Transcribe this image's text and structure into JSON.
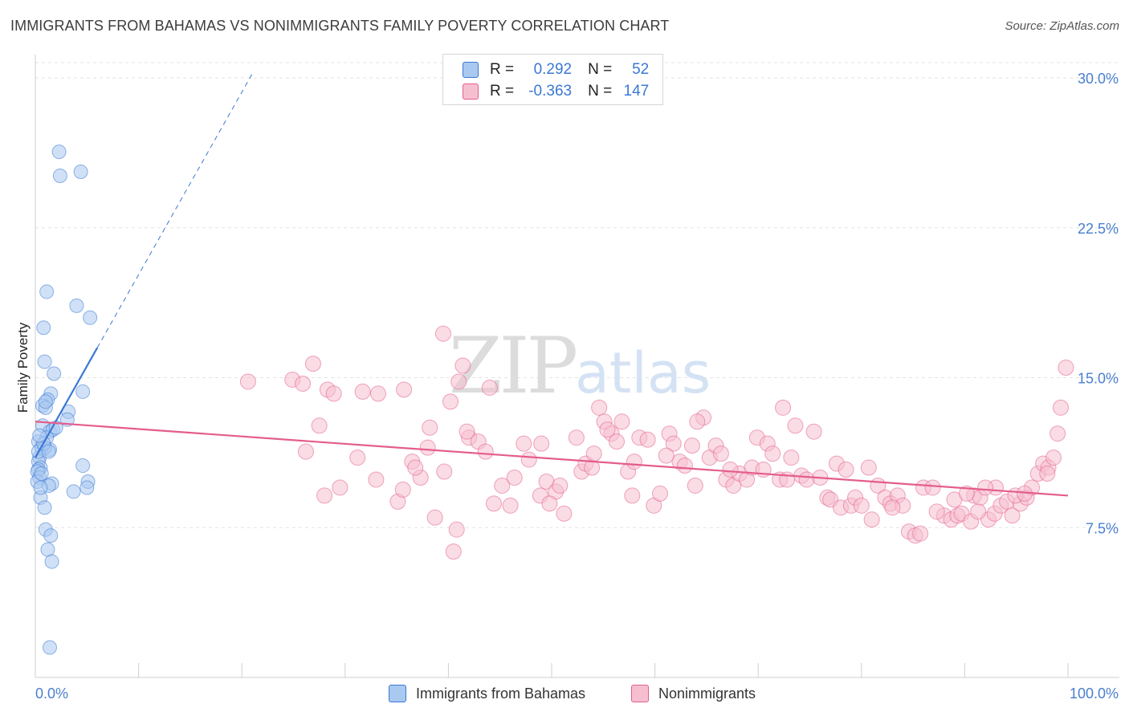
{
  "title": "IMMIGRANTS FROM BAHAMAS VS NONIMMIGRANTS FAMILY POVERTY CORRELATION CHART",
  "source": "Source: ZipAtlas.com",
  "watermark": "ZIPatlas",
  "legend": {
    "rows": [
      {
        "r_label": "R =",
        "r_value": "0.292",
        "n_label": "N =",
        "n_value": "52",
        "color": "#a9c9f0"
      },
      {
        "r_label": "R =",
        "r_value": "-0.363",
        "n_label": "N =",
        "n_value": "147",
        "color": "#f6bfd0"
      }
    ]
  },
  "bottom_legend": [
    {
      "label": "Immigrants from Bahamas",
      "color": "#a9c9f0"
    },
    {
      "label": "Nonimmigrants",
      "color": "#f6bfd0"
    }
  ],
  "chart_data": {
    "type": "scatter",
    "title": "IMMIGRANTS FROM BAHAMAS VS NONIMMIGRANTS FAMILY POVERTY CORRELATION CHART",
    "xlabel": "",
    "ylabel": "Family Poverty",
    "xlim": [
      0,
      100
    ],
    "ylim": [
      0,
      31.5
    ],
    "x_tick_labels": [
      "0.0%",
      "100.0%"
    ],
    "y_ticks": [
      7.5,
      15.0,
      22.5,
      30.0
    ],
    "y_tick_labels": [
      "7.5%",
      "15.0%",
      "22.5%",
      "30.0%"
    ],
    "series": [
      {
        "name": "Immigrants from Bahamas",
        "color": "#3b78d4",
        "fill": "#a9c9f0",
        "regression": {
          "x": [
            0,
            6.0
          ],
          "y": [
            11.0,
            16.5
          ],
          "dashed_to": {
            "x": 21,
            "y": 30.2
          }
        },
        "points": [
          [
            2.3,
            26.3
          ],
          [
            2.4,
            25.1
          ],
          [
            4.4,
            25.3
          ],
          [
            1.1,
            19.3
          ],
          [
            4.0,
            18.6
          ],
          [
            5.3,
            18.0
          ],
          [
            0.8,
            17.5
          ],
          [
            0.9,
            15.8
          ],
          [
            1.8,
            15.2
          ],
          [
            4.6,
            14.3
          ],
          [
            1.5,
            14.2
          ],
          [
            1.2,
            13.9
          ],
          [
            0.7,
            13.6
          ],
          [
            1.0,
            13.5
          ],
          [
            3.2,
            13.3
          ],
          [
            3.1,
            12.9
          ],
          [
            0.7,
            12.6
          ],
          [
            1.4,
            12.3
          ],
          [
            1.7,
            12.4
          ],
          [
            1.1,
            12.0
          ],
          [
            0.3,
            11.8
          ],
          [
            0.6,
            11.5
          ],
          [
            1.4,
            11.4
          ],
          [
            0.9,
            11.5
          ],
          [
            0.4,
            11.0
          ],
          [
            0.3,
            10.8
          ],
          [
            0.5,
            10.5
          ],
          [
            0.3,
            10.4
          ],
          [
            0.2,
            10.3
          ],
          [
            0.4,
            10.0
          ],
          [
            0.2,
            9.8
          ],
          [
            4.6,
            10.6
          ],
          [
            5.1,
            9.8
          ],
          [
            1.6,
            9.7
          ],
          [
            1.3,
            9.6
          ],
          [
            5.0,
            9.5
          ],
          [
            3.7,
            9.3
          ],
          [
            0.5,
            9.0
          ],
          [
            0.9,
            8.5
          ],
          [
            1.0,
            7.4
          ],
          [
            1.5,
            7.1
          ],
          [
            1.2,
            6.4
          ],
          [
            1.6,
            5.8
          ],
          [
            1.4,
            1.5
          ],
          [
            0.3,
            11.3
          ],
          [
            0.8,
            11.7
          ],
          [
            0.6,
            10.2
          ],
          [
            1.0,
            13.8
          ],
          [
            2.0,
            12.5
          ],
          [
            0.5,
            9.5
          ],
          [
            1.3,
            11.3
          ],
          [
            0.4,
            12.1
          ]
        ]
      },
      {
        "name": "Nonimmigrants",
        "color": "#e45d8c",
        "fill": "#f6bfd0",
        "regression": {
          "x": [
            0,
            100
          ],
          "y": [
            12.8,
            9.1
          ]
        },
        "points": [
          [
            20.6,
            14.8
          ],
          [
            24.9,
            14.9
          ],
          [
            25.9,
            14.7
          ],
          [
            26.9,
            15.7
          ],
          [
            28.3,
            14.4
          ],
          [
            28.9,
            14.2
          ],
          [
            31.7,
            14.3
          ],
          [
            33.2,
            14.2
          ],
          [
            35.7,
            14.4
          ],
          [
            39.5,
            17.2
          ],
          [
            38.2,
            12.5
          ],
          [
            41.4,
            15.6
          ],
          [
            41.0,
            14.8
          ],
          [
            40.2,
            13.8
          ],
          [
            42.0,
            12.0
          ],
          [
            44.0,
            14.5
          ],
          [
            27.5,
            12.6
          ],
          [
            26.2,
            11.3
          ],
          [
            29.5,
            9.5
          ],
          [
            28.0,
            9.1
          ],
          [
            31.2,
            11.0
          ],
          [
            33.0,
            9.9
          ],
          [
            35.1,
            8.8
          ],
          [
            35.6,
            9.4
          ],
          [
            36.5,
            10.8
          ],
          [
            37.3,
            10.0
          ],
          [
            38.0,
            11.5
          ],
          [
            39.6,
            10.3
          ],
          [
            36.8,
            10.5
          ],
          [
            38.7,
            8.0
          ],
          [
            40.5,
            6.3
          ],
          [
            40.8,
            7.4
          ],
          [
            41.8,
            12.3
          ],
          [
            42.9,
            11.8
          ],
          [
            43.6,
            11.3
          ],
          [
            44.4,
            8.7
          ],
          [
            45.2,
            9.6
          ],
          [
            46.0,
            8.6
          ],
          [
            46.4,
            10.0
          ],
          [
            47.3,
            11.7
          ],
          [
            47.8,
            10.9
          ],
          [
            48.9,
            9.1
          ],
          [
            49.5,
            9.8
          ],
          [
            49.0,
            11.7
          ],
          [
            50.4,
            9.3
          ],
          [
            50.8,
            9.6
          ],
          [
            51.2,
            8.2
          ],
          [
            52.4,
            12.0
          ],
          [
            52.9,
            10.3
          ],
          [
            53.3,
            10.7
          ],
          [
            53.9,
            10.5
          ],
          [
            54.6,
            13.5
          ],
          [
            55.1,
            12.8
          ],
          [
            55.8,
            12.2
          ],
          [
            55.4,
            12.4
          ],
          [
            56.3,
            11.8
          ],
          [
            56.8,
            12.8
          ],
          [
            57.4,
            10.3
          ],
          [
            57.8,
            9.1
          ],
          [
            58.5,
            12.0
          ],
          [
            59.3,
            11.9
          ],
          [
            59.9,
            8.6
          ],
          [
            60.5,
            9.2
          ],
          [
            61.4,
            12.2
          ],
          [
            61.8,
            11.7
          ],
          [
            62.4,
            10.8
          ],
          [
            62.9,
            10.6
          ],
          [
            63.6,
            11.6
          ],
          [
            63.9,
            9.6
          ],
          [
            64.7,
            13.0
          ],
          [
            65.3,
            11.0
          ],
          [
            65.9,
            11.6
          ],
          [
            66.4,
            11.2
          ],
          [
            66.9,
            9.9
          ],
          [
            67.6,
            9.6
          ],
          [
            68.2,
            10.2
          ],
          [
            68.9,
            9.9
          ],
          [
            69.4,
            10.5
          ],
          [
            69.9,
            12.0
          ],
          [
            70.5,
            10.4
          ],
          [
            70.9,
            11.7
          ],
          [
            71.4,
            11.2
          ],
          [
            72.1,
            9.9
          ],
          [
            72.4,
            13.5
          ],
          [
            72.8,
            9.9
          ],
          [
            73.6,
            12.6
          ],
          [
            74.2,
            10.1
          ],
          [
            74.7,
            9.9
          ],
          [
            75.4,
            12.3
          ],
          [
            76.0,
            10.0
          ],
          [
            76.7,
            9.0
          ],
          [
            77.0,
            8.9
          ],
          [
            77.6,
            10.7
          ],
          [
            78.0,
            8.5
          ],
          [
            78.5,
            10.4
          ],
          [
            79.0,
            8.6
          ],
          [
            79.4,
            9.0
          ],
          [
            80.0,
            8.6
          ],
          [
            80.7,
            10.5
          ],
          [
            81.0,
            7.9
          ],
          [
            81.6,
            9.6
          ],
          [
            82.3,
            9.0
          ],
          [
            82.8,
            8.7
          ],
          [
            83.5,
            9.1
          ],
          [
            84.0,
            8.6
          ],
          [
            84.6,
            7.3
          ],
          [
            85.2,
            7.1
          ],
          [
            85.7,
            7.2
          ],
          [
            86.0,
            9.5
          ],
          [
            86.9,
            9.5
          ],
          [
            88.0,
            8.1
          ],
          [
            88.7,
            7.9
          ],
          [
            89.3,
            8.1
          ],
          [
            89.7,
            8.2
          ],
          [
            90.6,
            7.8
          ],
          [
            90.9,
            9.1
          ],
          [
            91.5,
            9.0
          ],
          [
            92.3,
            7.9
          ],
          [
            92.9,
            8.2
          ],
          [
            93.5,
            8.6
          ],
          [
            94.1,
            8.8
          ],
          [
            94.6,
            8.1
          ],
          [
            95.4,
            8.7
          ],
          [
            96.0,
            9.0
          ],
          [
            96.5,
            9.5
          ],
          [
            97.1,
            10.2
          ],
          [
            97.6,
            10.7
          ],
          [
            98.1,
            10.5
          ],
          [
            98.6,
            11.0
          ],
          [
            99.0,
            12.2
          ],
          [
            99.3,
            13.5
          ],
          [
            99.8,
            15.5
          ],
          [
            93.0,
            9.5
          ],
          [
            91.3,
            8.3
          ],
          [
            94.9,
            9.1
          ],
          [
            95.8,
            9.2
          ],
          [
            87.3,
            8.3
          ],
          [
            98.0,
            10.2
          ],
          [
            89.0,
            8.9
          ],
          [
            90.2,
            9.2
          ],
          [
            92.0,
            9.5
          ],
          [
            83.0,
            8.5
          ],
          [
            73.2,
            11.0
          ],
          [
            67.3,
            10.4
          ],
          [
            64.1,
            12.8
          ],
          [
            61.1,
            11.1
          ],
          [
            58.0,
            10.8
          ],
          [
            54.1,
            11.2
          ],
          [
            49.8,
            8.7
          ]
        ]
      }
    ]
  }
}
